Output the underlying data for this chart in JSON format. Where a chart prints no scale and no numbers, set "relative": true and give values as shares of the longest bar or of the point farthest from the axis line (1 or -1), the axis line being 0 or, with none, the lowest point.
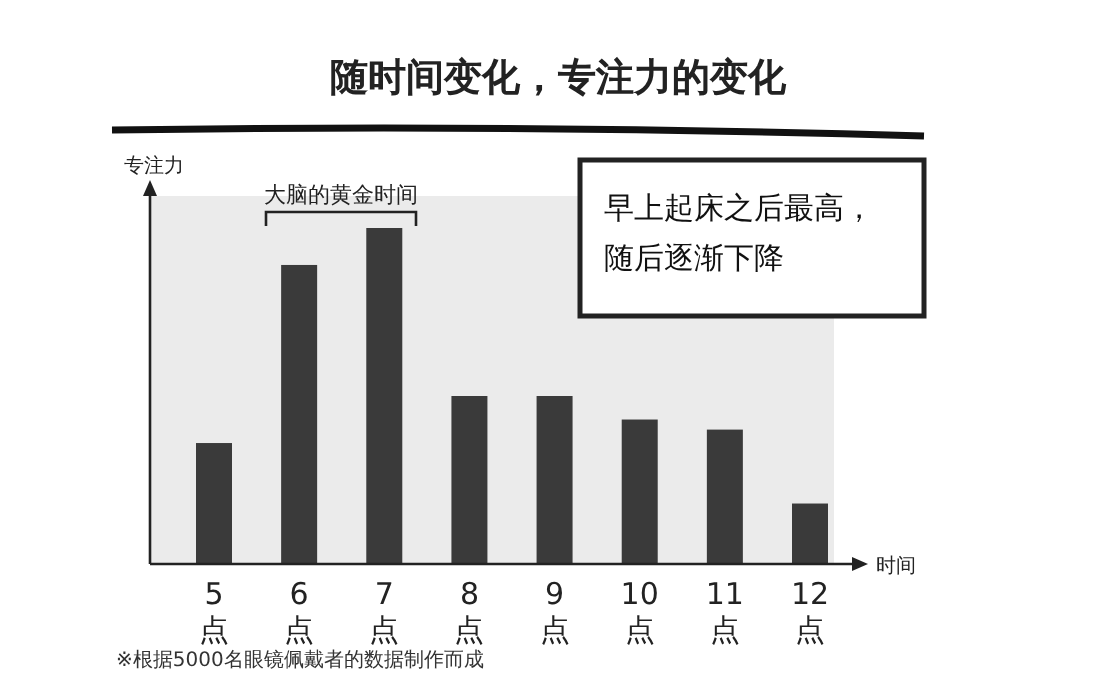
{
  "chart_data": {
    "type": "bar",
    "title": "随时间变化，专注力的变化",
    "ylabel": "专注力",
    "xlabel": "时间",
    "relative": true,
    "categories": [
      "5点",
      "6点",
      "7点",
      "8点",
      "9点",
      "10点",
      "11点",
      "12点"
    ],
    "values": [
      0.36,
      0.89,
      1,
      0.5,
      0.5,
      0.43,
      0.4,
      0.18
    ],
    "color": "#3a3a3a",
    "annotations": [
      "大脑的黄金时间",
      "早上起床之后最高，随后逐渐下降",
      "※根据5000名眼镜佩戴者的数据制作而成"
    ]
  }
}
